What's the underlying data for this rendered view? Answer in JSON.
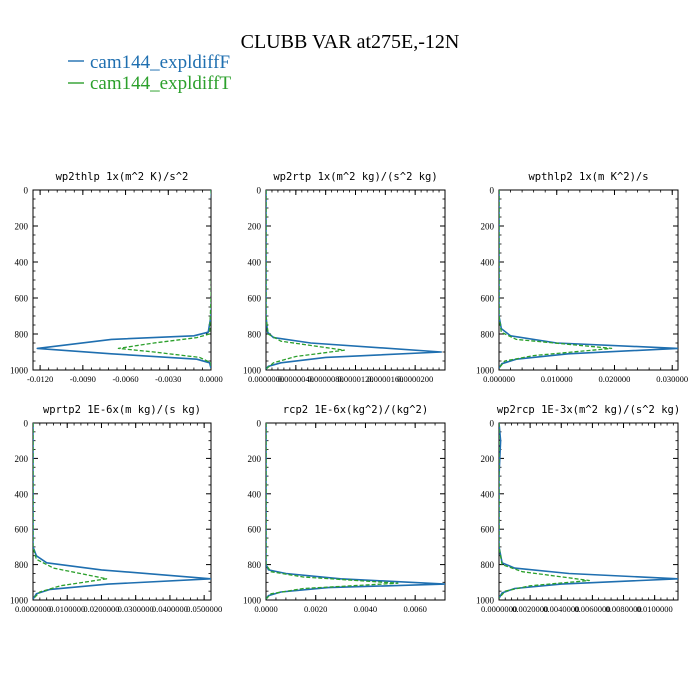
{
  "title": "CLUBB VAR at275E,-12N",
  "legend": [
    {
      "name": "cam144_expldiffF",
      "color": "#1f6fb0",
      "dash": "solid"
    },
    {
      "name": "cam144_expldiffT",
      "color": "#2ca02c",
      "dash": "dashed"
    }
  ],
  "chart_data": [
    {
      "type": "line",
      "title": "wp2thlp   1x(m^2 K)/s^2",
      "xlim": [
        -0.0125,
        0.0
      ],
      "ylim": [
        0,
        1000
      ],
      "y_inverted": true,
      "xticks": [
        "-0.0120",
        "-0.0090",
        "-0.0060",
        "-0.0030",
        "0.0000"
      ],
      "xtick_values": [
        -0.012,
        -0.009,
        -0.006,
        -0.003,
        0.0
      ],
      "yticks": [
        "0",
        "200",
        "400",
        "600",
        "800",
        "1000"
      ],
      "series": [
        {
          "name": "cam144_expldiffF",
          "x": [
            0.0,
            0.0001,
            0.0001,
            0.0001,
            0.0001,
            0.0,
            -0.0002,
            -0.0012,
            -0.007,
            -0.0122,
            -0.007,
            -0.001,
            -0.0001,
            0.0
          ],
          "y": [
            0,
            100,
            200,
            300,
            500,
            700,
            790,
            810,
            830,
            880,
            910,
            940,
            960,
            990
          ]
        },
        {
          "name": "cam144_expldiffT",
          "x": [
            0.0,
            0.0001,
            0.0001,
            0.0,
            -0.0001,
            -0.001,
            -0.004,
            -0.0065,
            -0.004,
            -0.0008,
            0.0,
            0.0
          ],
          "y": [
            0,
            100,
            300,
            600,
            800,
            820,
            850,
            880,
            900,
            930,
            960,
            990
          ]
        }
      ]
    },
    {
      "type": "line",
      "title": "wp2rtp   1x(m^2 kg)/(s^2 kg)",
      "xlim": [
        0.0,
        2.4e-05
      ],
      "ylim": [
        0,
        1000
      ],
      "y_inverted": true,
      "xticks": [
        "0.0000000",
        "0.0000040",
        "0.0000080",
        "0.0000120",
        "0.0000160",
        "0.0000200"
      ],
      "xtick_values": [
        0.0,
        4e-06,
        8e-06,
        1.2e-05,
        1.6e-05,
        2e-05
      ],
      "yticks": [
        "0",
        "200",
        "400",
        "600",
        "800",
        "1000"
      ],
      "series": [
        {
          "name": "cam144_expldiffF",
          "x": [
            0.0,
            0.0,
            2e-07,
            1e-06,
            6e-06,
            2.35e-05,
            8e-06,
            2e-06,
            3e-07,
            0.0
          ],
          "y": [
            0,
            700,
            790,
            820,
            850,
            900,
            930,
            960,
            980,
            995
          ]
        },
        {
          "name": "cam144_expldiffT",
          "x": [
            0.0,
            0.0,
            3e-07,
            2e-06,
            1.05e-05,
            4e-06,
            1e-06,
            0.0
          ],
          "y": [
            0,
            700,
            800,
            840,
            890,
            925,
            960,
            995
          ]
        }
      ]
    },
    {
      "type": "line",
      "title": "wpthlp2   1x(m K^2)/s",
      "xlim": [
        0.0,
        0.031
      ],
      "ylim": [
        0,
        1000
      ],
      "y_inverted": true,
      "xticks": [
        "0.000000",
        "0.010000",
        "0.020000",
        "0.030000"
      ],
      "xtick_values": [
        0.0,
        0.01,
        0.02,
        0.03
      ],
      "yticks": [
        "0",
        "200",
        "400",
        "600",
        "800",
        "1000"
      ],
      "series": [
        {
          "name": "cam144_expldiffF",
          "x": [
            0.0,
            0.0,
            0.0004,
            0.002,
            0.01,
            0.031,
            0.012,
            0.003,
            0.0005,
            0.0
          ],
          "y": [
            0,
            700,
            770,
            810,
            850,
            880,
            910,
            940,
            965,
            990
          ]
        },
        {
          "name": "cam144_expldiffT",
          "x": [
            0.0,
            0.0,
            0.0004,
            0.003,
            0.0195,
            0.006,
            0.001,
            0.0
          ],
          "y": [
            0,
            700,
            790,
            830,
            880,
            920,
            950,
            990
          ]
        }
      ]
    },
    {
      "type": "line",
      "title": "wprtp2   1E-6x(m kg)/(s kg)",
      "xlim": [
        0.0,
        0.052
      ],
      "ylim": [
        0,
        1000
      ],
      "y_inverted": true,
      "xticks": [
        "0.0000000",
        "0.0100000",
        "0.0200000",
        "0.0300000",
        "0.0400000",
        "0.0500000"
      ],
      "xtick_values": [
        0.0,
        0.01,
        0.02,
        0.03,
        0.04,
        0.05
      ],
      "yticks": [
        "0",
        "200",
        "400",
        "600",
        "800",
        "1000"
      ],
      "series": [
        {
          "name": "cam144_expldiffF",
          "x": [
            0.0,
            0.0,
            0.001,
            0.004,
            0.02,
            0.052,
            0.022,
            0.005,
            0.001,
            0.0
          ],
          "y": [
            0,
            700,
            750,
            790,
            830,
            880,
            910,
            940,
            965,
            995
          ]
        },
        {
          "name": "cam144_expldiffT",
          "x": [
            0.0,
            0.0,
            0.001,
            0.006,
            0.0215,
            0.008,
            0.002,
            0.0
          ],
          "y": [
            0,
            700,
            770,
            820,
            880,
            920,
            955,
            995
          ]
        }
      ]
    },
    {
      "type": "line",
      "title": "rcp2   1E-6x(kg^2)/(kg^2)",
      "xlim": [
        0.0,
        0.0072
      ],
      "ylim": [
        0,
        1000
      ],
      "y_inverted": true,
      "xticks": [
        "0.0000",
        "0.0020",
        "0.0040",
        "0.0060"
      ],
      "xtick_values": [
        0.0,
        0.002,
        0.004,
        0.006
      ],
      "yticks": [
        "0",
        "200",
        "400",
        "600",
        "800",
        "1000"
      ],
      "series": [
        {
          "name": "cam144_expldiffF",
          "x": [
            0.0,
            0.0,
            0.0001,
            0.0008,
            0.003,
            0.0072,
            0.0025,
            0.0006,
            0.0001,
            0.0
          ],
          "y": [
            0,
            800,
            830,
            850,
            880,
            910,
            930,
            955,
            975,
            995
          ]
        },
        {
          "name": "cam144_expldiffT",
          "x": [
            0.0,
            0.0,
            0.0002,
            0.0015,
            0.0053,
            0.0015,
            0.0002,
            0.0
          ],
          "y": [
            0,
            800,
            840,
            870,
            905,
            935,
            965,
            995
          ]
        }
      ]
    },
    {
      "type": "line",
      "title": "wp2rcp   1E-3x(m^2 kg)/(s^2 kg)",
      "xlim": [
        0.0,
        0.0115
      ],
      "ylim": [
        0,
        1000
      ],
      "y_inverted": true,
      "xticks": [
        "0.0000000",
        "0.0020000",
        "0.0040000",
        "0.0060000",
        "0.0080000",
        "0.0100000"
      ],
      "xtick_values": [
        0.0,
        0.002,
        0.004,
        0.006,
        0.008,
        0.01
      ],
      "yticks": [
        "0",
        "200",
        "400",
        "600",
        "800",
        "1000"
      ],
      "series": [
        {
          "name": "cam144_expldiffF",
          "x": [
            0.0,
            0.0001,
            0.0,
            0.0,
            0.0002,
            0.001,
            0.0045,
            0.0115,
            0.004,
            0.001,
            0.0002,
            0.0
          ],
          "y": [
            0,
            100,
            300,
            700,
            790,
            820,
            850,
            880,
            910,
            935,
            960,
            990
          ]
        },
        {
          "name": "cam144_expldiffT",
          "x": [
            0.0,
            0.0,
            0.0002,
            0.0015,
            0.0058,
            0.002,
            0.0004,
            0.0
          ],
          "y": [
            0,
            700,
            800,
            840,
            890,
            920,
            950,
            990
          ]
        }
      ]
    }
  ]
}
